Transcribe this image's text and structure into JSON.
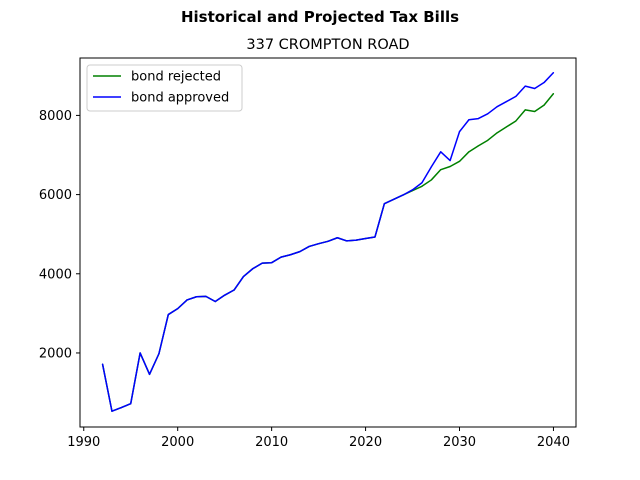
{
  "chart_data": {
    "type": "line",
    "suptitle": "Historical and Projected Tax Bills",
    "title": "337 CROMPTON ROAD",
    "xlabel": "",
    "ylabel": "",
    "xlim": [
      1989.6,
      2042.4
    ],
    "ylim": [
      130,
      9450
    ],
    "x_ticks": [
      1990,
      2000,
      2010,
      2020,
      2030,
      2040
    ],
    "y_ticks": [
      2000,
      4000,
      6000,
      8000
    ],
    "grid": false,
    "legend_position": "top-left",
    "series": [
      {
        "name": "bond rejected",
        "color": "#008000",
        "x": [
          1992,
          1993,
          1994,
          1995,
          1996,
          1997,
          1998,
          1999,
          2000,
          2001,
          2002,
          2003,
          2004,
          2005,
          2006,
          2007,
          2008,
          2009,
          2010,
          2011,
          2012,
          2013,
          2014,
          2015,
          2016,
          2017,
          2018,
          2019,
          2020,
          2021,
          2022,
          2023,
          2024,
          2025,
          2026,
          2027,
          2028,
          2029,
          2030,
          2031,
          2032,
          2033,
          2034,
          2035,
          2036,
          2037,
          2038,
          2039,
          2040
        ],
        "values": [
          1720,
          530,
          620,
          720,
          2000,
          1460,
          1980,
          2970,
          3120,
          3340,
          3420,
          3430,
          3300,
          3460,
          3590,
          3930,
          4130,
          4270,
          4280,
          4420,
          4480,
          4560,
          4690,
          4760,
          4820,
          4910,
          4830,
          4850,
          4890,
          4930,
          5770,
          5880,
          5990,
          6100,
          6210,
          6370,
          6630,
          6710,
          6840,
          7080,
          7230,
          7370,
          7560,
          7710,
          7860,
          8140,
          8100,
          8260,
          8550
        ]
      },
      {
        "name": "bond approved",
        "color": "#0000ff",
        "x": [
          1992,
          1993,
          1994,
          1995,
          1996,
          1997,
          1998,
          1999,
          2000,
          2001,
          2002,
          2003,
          2004,
          2005,
          2006,
          2007,
          2008,
          2009,
          2010,
          2011,
          2012,
          2013,
          2014,
          2015,
          2016,
          2017,
          2018,
          2019,
          2020,
          2021,
          2022,
          2023,
          2024,
          2025,
          2026,
          2027,
          2028,
          2029,
          2030,
          2031,
          2032,
          2033,
          2034,
          2035,
          2036,
          2037,
          2038,
          2039,
          2040
        ],
        "values": [
          1720,
          530,
          620,
          720,
          2000,
          1460,
          1980,
          2970,
          3120,
          3340,
          3420,
          3430,
          3300,
          3460,
          3590,
          3930,
          4130,
          4270,
          4280,
          4420,
          4480,
          4560,
          4690,
          4760,
          4820,
          4910,
          4830,
          4850,
          4890,
          4930,
          5770,
          5880,
          5990,
          6120,
          6300,
          6700,
          7080,
          6860,
          7590,
          7890,
          7920,
          8040,
          8220,
          8350,
          8480,
          8740,
          8680,
          8830,
          9080
        ]
      }
    ]
  }
}
